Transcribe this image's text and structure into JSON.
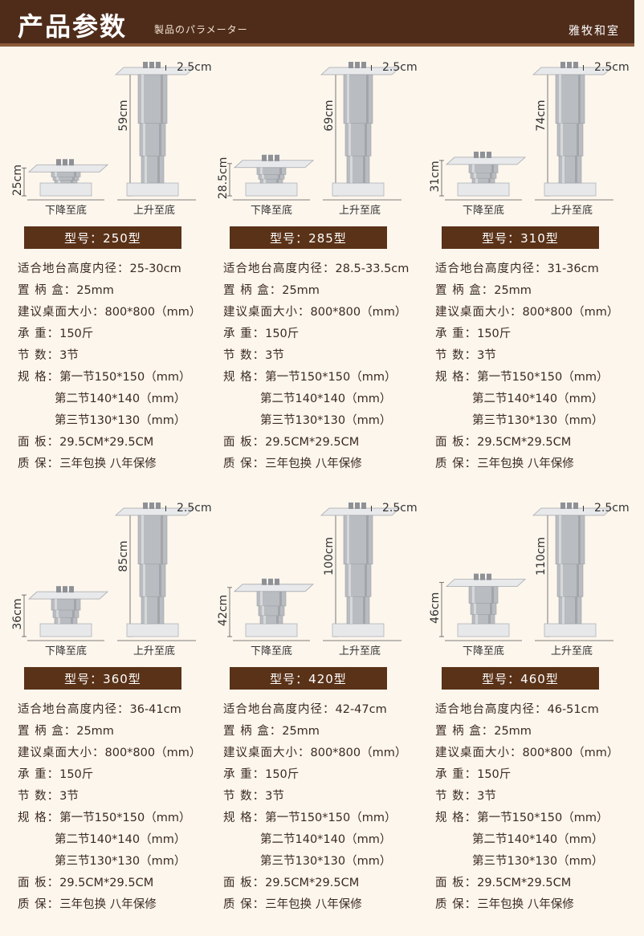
{
  "header": {
    "title": "产品参数",
    "subtitle": "製品のパラメーター",
    "brand": "雅牧和室"
  },
  "labels": {
    "down": "下降至底",
    "up": "上升至底",
    "top_thickness": "2.5cm"
  },
  "spec_keys": {
    "inner": "适合地台高度内径：",
    "handle": "置 柄 盒：",
    "desktop": "建议桌面大小：",
    "load": "承  重：",
    "sections": "节  数：",
    "spec": "规  格：",
    "panel": "面  板：",
    "warranty": "质  保："
  },
  "products": [
    {
      "model": "型号：250型",
      "low": "25cm",
      "high": "59cm",
      "low_value": 25,
      "high_value": 59,
      "inner": "25-30cm",
      "handle": "25mm",
      "desktop": "800*800（mm）",
      "load": "150斤",
      "sections": "3节",
      "spec1": "第一节150*150（mm）",
      "spec2": "第二节140*140（mm）",
      "spec3": "第三节130*130（mm）",
      "panel": "29.5CM*29.5CM",
      "warranty": "三年包换 八年保修"
    },
    {
      "model": "型号：285型",
      "low": "28.5cm",
      "high": "69cm",
      "low_value": 28.5,
      "high_value": 69,
      "inner": "28.5-33.5cm",
      "handle": "25mm",
      "desktop": "800*800（mm）",
      "load": "150斤",
      "sections": "3节",
      "spec1": "第一节150*150（mm）",
      "spec2": "第二节140*140（mm）",
      "spec3": "第三节130*130（mm）",
      "panel": "29.5CM*29.5CM",
      "warranty": "三年包换 八年保修"
    },
    {
      "model": "型号：310型",
      "low": "31cm",
      "high": "74cm",
      "low_value": 31,
      "high_value": 74,
      "inner": "31-36cm",
      "handle": "25mm",
      "desktop": "800*800（mm）",
      "load": "150斤",
      "sections": "3节",
      "spec1": "第一节150*150（mm）",
      "spec2": "第二节140*140（mm）",
      "spec3": "第三节130*130（mm）",
      "panel": "29.5CM*29.5CM",
      "warranty": "三年包换 八年保修"
    },
    {
      "model": "型号：360型",
      "low": "36cm",
      "high": "85cm",
      "low_value": 36,
      "high_value": 85,
      "inner": "36-41cm",
      "handle": "25mm",
      "desktop": "800*800（mm）",
      "load": "150斤",
      "sections": "3节",
      "spec1": "第一节150*150（mm）",
      "spec2": "第二节140*140（mm）",
      "spec3": "第三节130*130（mm）",
      "panel": "29.5CM*29.5CM",
      "warranty": "三年包换 八年保修"
    },
    {
      "model": "型号：420型",
      "low": "42cm",
      "high": "100cm",
      "low_value": 42,
      "high_value": 100,
      "inner": "42-47cm",
      "handle": "25mm",
      "desktop": "800*800（mm）",
      "load": "150斤",
      "sections": "3节",
      "spec1": "第一节150*150（mm）",
      "spec2": "第二节140*140（mm）",
      "spec3": "第三节130*130（mm）",
      "panel": "29.5CM*29.5CM",
      "warranty": "三年包换 八年保修"
    },
    {
      "model": "型号：460型",
      "low": "46cm",
      "high": "110cm",
      "low_value": 46,
      "high_value": 110,
      "inner": "46-51cm",
      "handle": "25mm",
      "desktop": "800*800（mm）",
      "load": "150斤",
      "sections": "3节",
      "spec1": "第一节150*150（mm）",
      "spec2": "第二节140*140（mm）",
      "spec3": "第三节130*130（mm）",
      "panel": "29.5CM*29.5CM",
      "warranty": "三年包换 八年保修"
    }
  ],
  "colors": {
    "header_bg": "#4f2c1a",
    "model_bar_bg": "#5a3218",
    "page_bg": "#fdf6ed",
    "metal": "#b9bcc0"
  }
}
